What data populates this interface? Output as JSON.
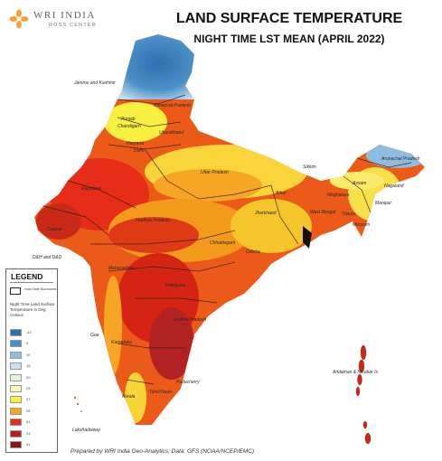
{
  "logo": {
    "name": "WRI INDIA",
    "sub": "ROSS CENTER"
  },
  "title": "LAND SURFACE TEMPERATURE",
  "subtitle": "NIGHT TIME LST MEAN (APRIL 2022)",
  "legend": {
    "title": "LEGEND",
    "boundary_label": "India State Boundaries",
    "heading": "Night Time Land Surface Temperature in Deg Celsius",
    "classes": [
      {
        "label": "-10",
        "color": "#2f6fb0"
      },
      {
        "label": "0",
        "color": "#4a8fc7"
      },
      {
        "label": "10",
        "color": "#8fbde0"
      },
      {
        "label": "15",
        "color": "#c9e2f2"
      },
      {
        "label": "20",
        "color": "#e7f2d4"
      },
      {
        "label": "25",
        "color": "#fbf7b6"
      },
      {
        "label": "27",
        "color": "#f7f040"
      },
      {
        "label": "29",
        "color": "#f6a524"
      },
      {
        "label": "31",
        "color": "#e52d17"
      },
      {
        "label": "33",
        "color": "#b32222"
      },
      {
        "label": "41",
        "color": "#8a1616"
      }
    ]
  },
  "map": {
    "labels": {
      "jammu": "Jammu and Kashmir",
      "himachal": "Himachal Pradesh",
      "punjab": "Punjab",
      "chandigarh": "Chandigarh",
      "uttarakhand": "Uttarakhand",
      "haryana": "Haryana",
      "delhi": "Delhi",
      "up": "Uttar Pradesh",
      "bihar": "Bihar",
      "rajasthan": "Rajasthan",
      "mp": "Madhya Pradesh",
      "gujarat": "Gujarat",
      "jharkhand": "Jharkhand",
      "wb": "West Bengal",
      "sikkim": "Sikkim",
      "arunachal": "Arunachal Pradesh",
      "assam": "Assam",
      "nagaland": "Nagaland",
      "meghalaya": "Meghalaya",
      "manipur": "Manipur",
      "tripura": "Tripura",
      "mizoram": "Mizoram",
      "chhattisgarh": "Chhattisgarh",
      "odisha": "Odisha",
      "maharashtra": "Maharashtra",
      "dnh": "D&H and D&D",
      "telangana": "Telangana",
      "ap": "Andhra Pradesh",
      "karnataka": "Karnataka",
      "goa": "Goa",
      "tamilnadu": "Tamil Nadu",
      "kerala": "Kerala",
      "puducherry": "Puducherry",
      "lakshadweep": "Lakshadweep",
      "andaman": "Andaman & Nicobar Is"
    }
  },
  "footer": "Prepared by WRI India Geo-Analytics; Data: GFS (NOAA/NCEP/EMC)"
}
